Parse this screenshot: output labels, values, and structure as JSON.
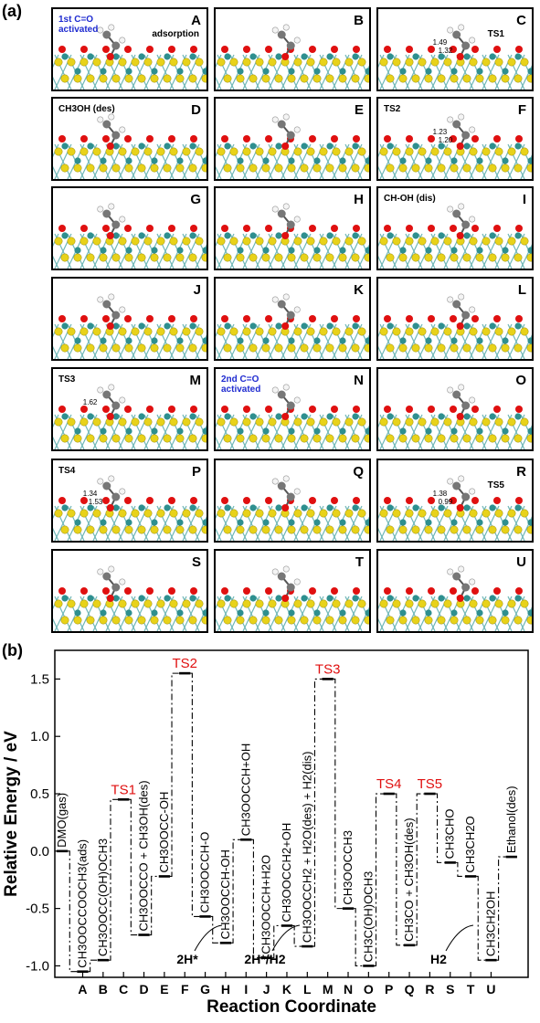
{
  "panel_a": {
    "label": "(a)",
    "tiles": [
      {
        "letter": "A",
        "notes": [
          {
            "text": "1st C=O activated",
            "blue": true
          },
          {
            "text": "adsorption"
          }
        ],
        "bonds": []
      },
      {
        "letter": "B",
        "notes": [],
        "bonds": []
      },
      {
        "letter": "C",
        "notes": [
          {
            "text": "TS1"
          }
        ],
        "bonds": [
          "1.49",
          "1.32"
        ]
      },
      {
        "letter": "D",
        "notes": [
          {
            "text": "CH3OH (des)"
          }
        ],
        "bonds": []
      },
      {
        "letter": "E",
        "notes": [],
        "bonds": []
      },
      {
        "letter": "F",
        "notes": [
          {
            "text": "TS2"
          }
        ],
        "bonds": [
          "1.23",
          "1.20"
        ]
      },
      {
        "letter": "G",
        "notes": [],
        "bonds": []
      },
      {
        "letter": "H",
        "notes": [],
        "bonds": []
      },
      {
        "letter": "I",
        "notes": [
          {
            "text": "CH-OH (dis)"
          }
        ],
        "bonds": []
      },
      {
        "letter": "J",
        "notes": [],
        "bonds": []
      },
      {
        "letter": "K",
        "notes": [],
        "bonds": []
      },
      {
        "letter": "L",
        "notes": [],
        "bonds": []
      },
      {
        "letter": "M",
        "notes": [
          {
            "text": "TS3"
          }
        ],
        "bonds": [
          "1.62"
        ]
      },
      {
        "letter": "N",
        "notes": [
          {
            "text": "2nd C=O activated",
            "blue": true
          }
        ],
        "bonds": []
      },
      {
        "letter": "O",
        "notes": [],
        "bonds": []
      },
      {
        "letter": "P",
        "notes": [
          {
            "text": "TS4"
          }
        ],
        "bonds": [
          "1.34",
          "1.53"
        ]
      },
      {
        "letter": "Q",
        "notes": [],
        "bonds": []
      },
      {
        "letter": "R",
        "notes": [
          {
            "text": "TS5"
          }
        ],
        "bonds": [
          "1.38",
          "0.99"
        ]
      },
      {
        "letter": "S",
        "notes": [],
        "bonds": []
      },
      {
        "letter": "T",
        "notes": [],
        "bonds": []
      },
      {
        "letter": "U",
        "notes": [],
        "bonds": []
      }
    ]
  },
  "chart_data": {
    "type": "line",
    "panel_label": "(b)",
    "xlabel": "Reaction Coordinate",
    "ylabel": "Relative Energy / eV",
    "ylim": [
      -1.1,
      1.75
    ],
    "yticks": [
      "-1.0",
      "-0.5",
      "0.0",
      "0.5",
      "1.0",
      "1.5"
    ],
    "grid": false,
    "categories": [
      "A",
      "B",
      "C",
      "D",
      "E",
      "F",
      "G",
      "H",
      "I",
      "J",
      "K",
      "L",
      "M",
      "N",
      "O",
      "P",
      "Q",
      "R",
      "S",
      "T",
      "U"
    ],
    "steps": [
      {
        "label": "DMO(gas)",
        "energy": 0.0,
        "is_ts": false
      },
      {
        "label": "CH3OOCCOOCH3(ads)",
        "energy": -1.05,
        "is_ts": false
      },
      {
        "label": "CH3OOCC(OH)OCH3",
        "energy": -0.95,
        "is_ts": false
      },
      {
        "label": "TS1",
        "energy": 0.45,
        "is_ts": true
      },
      {
        "label": "CH3OOCCO + CH3OH(des)",
        "energy": -0.73,
        "is_ts": false
      },
      {
        "label": "CH3OOCC-OH",
        "energy": -0.22,
        "is_ts": false
      },
      {
        "label": "TS2",
        "energy": 1.55,
        "is_ts": true
      },
      {
        "label": "CH3OOCCH-O",
        "energy": -0.57,
        "is_ts": false
      },
      {
        "label": "CH3OOCCH-OH",
        "energy": -0.8,
        "is_ts": false
      },
      {
        "label": "CH3OOCCH+OH",
        "energy": 0.1,
        "is_ts": false
      },
      {
        "label": "CH3OOCCH+H2O",
        "energy": -0.93,
        "is_ts": false
      },
      {
        "label": "CH3OOCCH2+OH",
        "energy": -0.65,
        "is_ts": false
      },
      {
        "label": "CH3OOCCH2 + H2O(des) + H2(dis)",
        "energy": -0.83,
        "is_ts": false
      },
      {
        "label": "TS3",
        "energy": 1.5,
        "is_ts": true
      },
      {
        "label": "CH3OOCCH3",
        "energy": -0.5,
        "is_ts": false
      },
      {
        "label": "CH3C(OH)OCH3",
        "energy": -1.0,
        "is_ts": false
      },
      {
        "label": "TS4",
        "energy": 0.5,
        "is_ts": true
      },
      {
        "label": "CH3CO + CH3OH(des)",
        "energy": -0.82,
        "is_ts": false
      },
      {
        "label": "TS5",
        "energy": 0.5,
        "is_ts": true
      },
      {
        "label": "CH3CHO",
        "energy": -0.1,
        "is_ts": false
      },
      {
        "label": "CH3CH2O",
        "energy": -0.22,
        "is_ts": false
      },
      {
        "label": "CH3CH2OH",
        "energy": -0.95,
        "is_ts": false
      },
      {
        "label": "Ethanol(des)",
        "energy": -0.05,
        "is_ts": false
      }
    ],
    "annotations": [
      {
        "text": "2H*",
        "near": "G"
      },
      {
        "text": "2H*/H2",
        "near": "K"
      },
      {
        "text": "H2",
        "near": "S"
      }
    ],
    "colors": {
      "ts": "#e01010",
      "highlight": "#1f2bd0",
      "line": "#000000"
    }
  }
}
